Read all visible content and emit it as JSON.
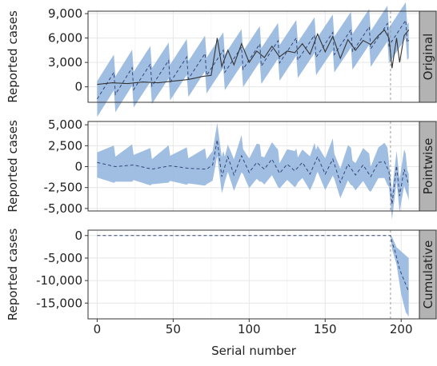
{
  "chart_data": {
    "type": "line",
    "xlabel": "Serial number",
    "x_ticks": [
      0,
      50,
      100,
      150,
      200
    ],
    "xlim": [
      -6,
      212
    ],
    "colors": {
      "band": "#8fb3dd",
      "line": "#333333",
      "dashed": "#34457a",
      "strip": "#b3b3b3",
      "grid": "#e6e6e6",
      "vline": "#9a9a9a"
    },
    "intervention_x": 193,
    "panels": [
      {
        "strip_label": "Original",
        "ylabel": "Reported cases",
        "ylim": [
          -1900,
          9300
        ],
        "y_ticks": [
          0,
          3000,
          6000,
          9000
        ],
        "y_tick_labels": [
          "0",
          "3,000",
          "6,000",
          "9,000"
        ],
        "observed_anchors": [
          [
            0,
            300
          ],
          [
            10,
            500
          ],
          [
            20,
            400
          ],
          [
            30,
            600
          ],
          [
            40,
            500
          ],
          [
            50,
            700
          ],
          [
            60,
            900
          ],
          [
            70,
            1300
          ],
          [
            75,
            1400
          ],
          [
            79,
            6000
          ],
          [
            82,
            2500
          ],
          [
            86,
            4500
          ],
          [
            90,
            2700
          ],
          [
            95,
            5300
          ],
          [
            100,
            3000
          ],
          [
            105,
            4400
          ],
          [
            110,
            3600
          ],
          [
            115,
            5000
          ],
          [
            120,
            3700
          ],
          [
            125,
            4400
          ],
          [
            130,
            4200
          ],
          [
            135,
            5300
          ],
          [
            140,
            4000
          ],
          [
            145,
            6500
          ],
          [
            150,
            4300
          ],
          [
            155,
            6200
          ],
          [
            160,
            3500
          ],
          [
            165,
            5800
          ],
          [
            170,
            4500
          ],
          [
            175,
            5700
          ],
          [
            180,
            5200
          ],
          [
            185,
            6300
          ],
          [
            189,
            7000
          ],
          [
            192,
            6000
          ],
          [
            194,
            2300
          ],
          [
            197,
            6000
          ],
          [
            199,
            3000
          ],
          [
            202,
            6300
          ],
          [
            205,
            7000
          ]
        ],
        "prediction_anchors": [
          [
            0,
            0
          ],
          [
            25,
            1200
          ],
          [
            50,
            2100
          ],
          [
            75,
            3000
          ],
          [
            100,
            3800
          ],
          [
            125,
            4600
          ],
          [
            150,
            5300
          ],
          [
            175,
            6000
          ],
          [
            205,
            7000
          ]
        ],
        "band_halfwidth": 2200,
        "band_seasonal_amplitude": 1500,
        "band_period": 12
      },
      {
        "strip_label": "Pointwise",
        "ylabel": "Reported cases",
        "ylim": [
          -5300,
          5400
        ],
        "y_ticks": [
          -5000,
          -2500,
          0,
          2500,
          5000
        ],
        "y_tick_labels": [
          "-5,000",
          "-2,500",
          "0",
          "2,500",
          "5,000"
        ],
        "center_anchors": [
          [
            0,
            500
          ],
          [
            12,
            0
          ],
          [
            24,
            200
          ],
          [
            36,
            -300
          ],
          [
            48,
            100
          ],
          [
            60,
            -200
          ],
          [
            72,
            -300
          ],
          [
            76,
            200
          ],
          [
            79,
            3200
          ],
          [
            82,
            -1200
          ],
          [
            86,
            1200
          ],
          [
            90,
            -1000
          ],
          [
            95,
            1300
          ],
          [
            100,
            -700
          ],
          [
            105,
            500
          ],
          [
            110,
            -300
          ],
          [
            115,
            900
          ],
          [
            120,
            -800
          ],
          [
            125,
            300
          ],
          [
            130,
            -500
          ],
          [
            135,
            500
          ],
          [
            140,
            -900
          ],
          [
            145,
            1200
          ],
          [
            150,
            -900
          ],
          [
            155,
            900
          ],
          [
            160,
            -1900
          ],
          [
            165,
            300
          ],
          [
            170,
            -1000
          ],
          [
            175,
            200
          ],
          [
            180,
            -1200
          ],
          [
            185,
            500
          ],
          [
            189,
            600
          ],
          [
            192,
            -600
          ],
          [
            194,
            -4500
          ],
          [
            197,
            100
          ],
          [
            199,
            -3500
          ],
          [
            202,
            -300
          ],
          [
            205,
            -2200
          ]
        ],
        "band_halfwidth": 1900,
        "band_seasonal_amplitude": 1000,
        "band_period": 12
      },
      {
        "strip_label": "Cumulative",
        "ylabel": "Reported cases",
        "ylim": [
          -18500,
          1200
        ],
        "y_ticks": [
          -15000,
          -10000,
          -5000,
          0
        ],
        "y_tick_labels": [
          "-15,000",
          "-10,000",
          "-5,000",
          "0"
        ],
        "center_anchors": [
          [
            0,
            0
          ],
          [
            193,
            0
          ],
          [
            194,
            -1500
          ],
          [
            196,
            -3500
          ],
          [
            199,
            -7500
          ],
          [
            202,
            -10000
          ],
          [
            205,
            -12500
          ]
        ],
        "band_upper_anchors": [
          [
            0,
            0
          ],
          [
            193,
            0
          ],
          [
            194,
            -300
          ],
          [
            197,
            -2600
          ],
          [
            200,
            -3500
          ],
          [
            205,
            -5000
          ]
        ],
        "band_lower_anchors": [
          [
            0,
            0
          ],
          [
            193,
            0
          ],
          [
            194,
            -3000
          ],
          [
            197,
            -6500
          ],
          [
            200,
            -13000
          ],
          [
            203,
            -17000
          ],
          [
            205,
            -18000
          ]
        ]
      }
    ]
  }
}
